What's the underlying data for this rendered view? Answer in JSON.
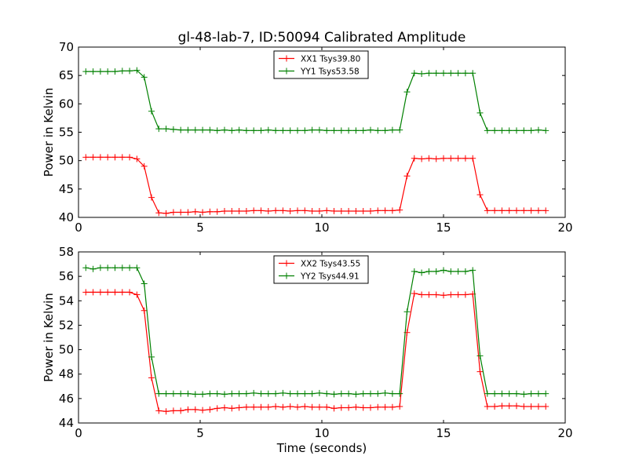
{
  "figure_title": "gl-48-lab-7, ID:50094 Calibrated Amplitude",
  "chart_data": [
    {
      "type": "line",
      "title": "gl-48-lab-7, ID:50094 Calibrated Amplitude",
      "xlabel": "",
      "ylabel": "Power in Kelvin",
      "xlim": [
        0,
        20
      ],
      "ylim": [
        40,
        70
      ],
      "xticks": [
        0,
        5,
        10,
        15,
        20
      ],
      "yticks": [
        40,
        45,
        50,
        55,
        60,
        65,
        70
      ],
      "grid": false,
      "legend_position": "top-center",
      "x": [
        0.3,
        0.6,
        0.9,
        1.2,
        1.5,
        1.8,
        2.1,
        2.4,
        2.7,
        3.0,
        3.3,
        3.6,
        3.9,
        4.2,
        4.5,
        4.8,
        5.1,
        5.4,
        5.7,
        6.0,
        6.3,
        6.6,
        6.9,
        7.2,
        7.5,
        7.8,
        8.1,
        8.4,
        8.7,
        9.0,
        9.3,
        9.6,
        9.9,
        10.2,
        10.5,
        10.8,
        11.1,
        11.4,
        11.7,
        12.0,
        12.3,
        12.6,
        12.9,
        13.2,
        13.5,
        13.8,
        14.1,
        14.4,
        14.7,
        15.0,
        15.3,
        15.6,
        15.9,
        16.2,
        16.5,
        16.8,
        17.1,
        17.4,
        17.7,
        18.0,
        18.3,
        18.6,
        18.9,
        19.2
      ],
      "series": [
        {
          "name": "XX1 Tsys39.80",
          "color": "#ff0000",
          "values": [
            50.6,
            50.6,
            50.6,
            50.6,
            50.6,
            50.6,
            50.6,
            50.3,
            49.0,
            43.5,
            40.8,
            40.7,
            40.9,
            40.9,
            40.9,
            41.0,
            40.9,
            41.0,
            41.0,
            41.1,
            41.1,
            41.1,
            41.1,
            41.2,
            41.2,
            41.1,
            41.2,
            41.2,
            41.1,
            41.2,
            41.2,
            41.1,
            41.1,
            41.2,
            41.1,
            41.1,
            41.1,
            41.1,
            41.1,
            41.1,
            41.2,
            41.2,
            41.2,
            41.3,
            47.3,
            50.4,
            50.3,
            50.4,
            50.3,
            50.4,
            50.4,
            50.4,
            50.4,
            50.4,
            44.0,
            41.2,
            41.2,
            41.2,
            41.2,
            41.2,
            41.2,
            41.2,
            41.2,
            41.2
          ]
        },
        {
          "name": "YY1 Tsys53.58",
          "color": "#008000",
          "values": [
            65.7,
            65.7,
            65.7,
            65.7,
            65.7,
            65.8,
            65.8,
            65.9,
            64.7,
            58.7,
            55.6,
            55.6,
            55.5,
            55.4,
            55.4,
            55.4,
            55.4,
            55.4,
            55.3,
            55.4,
            55.3,
            55.4,
            55.3,
            55.3,
            55.3,
            55.4,
            55.3,
            55.3,
            55.3,
            55.3,
            55.3,
            55.4,
            55.4,
            55.3,
            55.3,
            55.3,
            55.3,
            55.3,
            55.3,
            55.4,
            55.3,
            55.3,
            55.4,
            55.4,
            62.1,
            65.4,
            65.3,
            65.4,
            65.4,
            65.4,
            65.4,
            65.4,
            65.4,
            65.4,
            58.4,
            55.3,
            55.3,
            55.3,
            55.3,
            55.3,
            55.3,
            55.3,
            55.4,
            55.3
          ]
        }
      ]
    },
    {
      "type": "line",
      "title": "",
      "xlabel": "Time (seconds)",
      "ylabel": "Power in Kelvin",
      "xlim": [
        0,
        20
      ],
      "ylim": [
        44,
        58
      ],
      "xticks": [
        0,
        5,
        10,
        15,
        20
      ],
      "yticks": [
        44,
        46,
        48,
        50,
        52,
        54,
        56,
        58
      ],
      "grid": false,
      "legend_position": "top-center",
      "x": [
        0.3,
        0.6,
        0.9,
        1.2,
        1.5,
        1.8,
        2.1,
        2.4,
        2.7,
        3.0,
        3.3,
        3.6,
        3.9,
        4.2,
        4.5,
        4.8,
        5.1,
        5.4,
        5.7,
        6.0,
        6.3,
        6.6,
        6.9,
        7.2,
        7.5,
        7.8,
        8.1,
        8.4,
        8.7,
        9.0,
        9.3,
        9.6,
        9.9,
        10.2,
        10.5,
        10.8,
        11.1,
        11.4,
        11.7,
        12.0,
        12.3,
        12.6,
        12.9,
        13.2,
        13.5,
        13.8,
        14.1,
        14.4,
        14.7,
        15.0,
        15.3,
        15.6,
        15.9,
        16.2,
        16.5,
        16.8,
        17.1,
        17.4,
        17.7,
        18.0,
        18.3,
        18.6,
        18.9,
        19.2
      ],
      "series": [
        {
          "name": "XX2 Tsys43.55",
          "color": "#ff0000",
          "values": [
            54.7,
            54.7,
            54.7,
            54.7,
            54.7,
            54.7,
            54.7,
            54.5,
            53.2,
            47.7,
            45.0,
            44.95,
            45.0,
            45.0,
            45.1,
            45.1,
            45.05,
            45.1,
            45.2,
            45.25,
            45.2,
            45.25,
            45.3,
            45.3,
            45.3,
            45.3,
            45.35,
            45.3,
            45.35,
            45.3,
            45.35,
            45.3,
            45.3,
            45.3,
            45.2,
            45.25,
            45.25,
            45.3,
            45.25,
            45.25,
            45.3,
            45.3,
            45.3,
            45.35,
            51.4,
            54.6,
            54.5,
            54.5,
            54.5,
            54.45,
            54.5,
            54.5,
            54.5,
            54.55,
            48.2,
            45.35,
            45.35,
            45.4,
            45.4,
            45.4,
            45.35,
            45.35,
            45.35,
            45.35
          ]
        },
        {
          "name": "YY2 Tsys44.91",
          "color": "#008000",
          "values": [
            56.7,
            56.6,
            56.7,
            56.7,
            56.7,
            56.7,
            56.7,
            56.7,
            55.4,
            49.4,
            46.4,
            46.4,
            46.4,
            46.4,
            46.4,
            46.35,
            46.35,
            46.4,
            46.4,
            46.35,
            46.4,
            46.4,
            46.4,
            46.45,
            46.4,
            46.4,
            46.4,
            46.45,
            46.4,
            46.4,
            46.4,
            46.4,
            46.45,
            46.4,
            46.35,
            46.4,
            46.4,
            46.35,
            46.4,
            46.4,
            46.4,
            46.45,
            46.4,
            46.4,
            53.1,
            56.4,
            56.3,
            56.4,
            56.4,
            56.5,
            56.4,
            56.4,
            56.4,
            56.5,
            49.5,
            46.4,
            46.4,
            46.4,
            46.4,
            46.4,
            46.35,
            46.4,
            46.4,
            46.4
          ]
        }
      ]
    }
  ]
}
